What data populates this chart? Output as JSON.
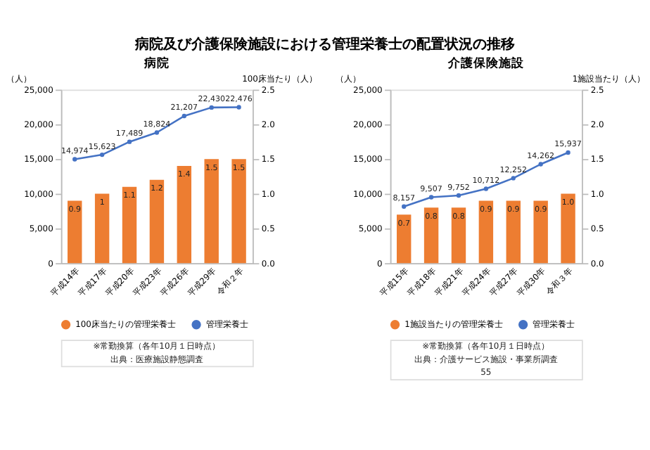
{
  "chart_data": [
    {
      "type": "bar",
      "title": "病院",
      "categories": [
        "平成14年",
        "平成17年",
        "平成20年",
        "平成23年",
        "平成26年",
        "平成29年",
        "令和２年"
      ],
      "ylabel": "（人）",
      "y2label": "100床当たり（人）",
      "ylim": [
        0,
        25000
      ],
      "yticks": [
        {
          "value": 0,
          "label": "0"
        },
        {
          "value": 5000,
          "label": "5,000"
        },
        {
          "value": 10000,
          "label": "10,000"
        },
        {
          "value": 15000,
          "label": "15,000"
        },
        {
          "value": 20000,
          "label": "20,000"
        },
        {
          "value": 25000,
          "label": "25,000"
        }
      ],
      "y2lim": [
        0,
        2.5
      ],
      "y2ticks": [
        {
          "value": 0,
          "label": "0.0"
        },
        {
          "value": 0.5,
          "label": "0.5"
        },
        {
          "value": 1,
          "label": "1.0"
        },
        {
          "value": 1.5,
          "label": "1.5"
        },
        {
          "value": 2,
          "label": "2.0"
        },
        {
          "value": 2.5,
          "label": "2.5"
        }
      ],
      "series": [
        {
          "name": "100床当たりの管理栄養士",
          "axis": "y2",
          "color": "#ed7d31",
          "values": [
            0.9,
            1,
            1.1,
            1.2,
            1.4,
            1.5,
            1.5
          ],
          "value_labels": [
            "0.9",
            "1",
            "1.1",
            "1.2",
            "1.4",
            "1.5",
            "1.5"
          ]
        },
        {
          "name": "管理栄養士",
          "type": "line",
          "color": "#4472c4",
          "marker": "circle",
          "values": [
            14974,
            15623,
            17489,
            18824,
            21207,
            22430,
            22476
          ],
          "value_labels": [
            "14,974",
            "15,623",
            "17,489",
            "18,824",
            "21,207",
            "22,430",
            "22,476"
          ]
        }
      ],
      "legend": "bottom",
      "grid": false,
      "annotations": [
        "病院及び介護保険施設における管理栄養士の配置状況の推移",
        "※常勤換算（各年10月１日時点）",
        "出典：医療施設静態調査"
      ]
    },
    {
      "type": "bar",
      "title": "介護保険施設",
      "categories": [
        "平成15年",
        "平成18年",
        "平成21年",
        "平成24年",
        "平成27年",
        "平成30年",
        "令和３年"
      ],
      "ylabel": "（人）",
      "y2label": "1施設当たり（人）",
      "ylim": [
        0,
        25000
      ],
      "yticks": [
        {
          "value": 0,
          "label": "0"
        },
        {
          "value": 5000,
          "label": "5,000"
        },
        {
          "value": 10000,
          "label": "10,000"
        },
        {
          "value": 15000,
          "label": "15,000"
        },
        {
          "value": 20000,
          "label": "20,000"
        },
        {
          "value": 25000,
          "label": "25,000"
        }
      ],
      "y2lim": [
        0,
        2.5
      ],
      "y2ticks": [
        {
          "value": 0,
          "label": "0.0"
        },
        {
          "value": 0.5,
          "label": "0.5"
        },
        {
          "value": 1,
          "label": "1.0"
        },
        {
          "value": 1.5,
          "label": "1.5"
        },
        {
          "value": 2,
          "label": "2.0"
        },
        {
          "value": 2.5,
          "label": "2.5"
        }
      ],
      "series": [
        {
          "name": "1施設当たりの管理栄養士",
          "axis": "y2",
          "color": "#ed7d31",
          "values": [
            0.7,
            0.8,
            0.8,
            0.9,
            0.9,
            0.9,
            1.0
          ],
          "value_labels": [
            "0.7",
            "0.8",
            "0.8",
            "0.9",
            "0.9",
            "0.9",
            "1.0"
          ]
        },
        {
          "name": "管理栄養士",
          "type": "line",
          "color": "#4472c4",
          "marker": "circle",
          "values": [
            8157,
            9507,
            9752,
            10712,
            12252,
            14262,
            15937
          ],
          "value_labels": [
            "8,157",
            "9,507",
            "9,752",
            "10,712",
            "12,252",
            "14,262",
            "15,937"
          ]
        }
      ],
      "legend": "bottom",
      "grid": false,
      "annotations": [
        "※常勤換算（各年10月１日時点）",
        "出典：介護サービス施設・事業所調査",
        "55"
      ]
    }
  ]
}
